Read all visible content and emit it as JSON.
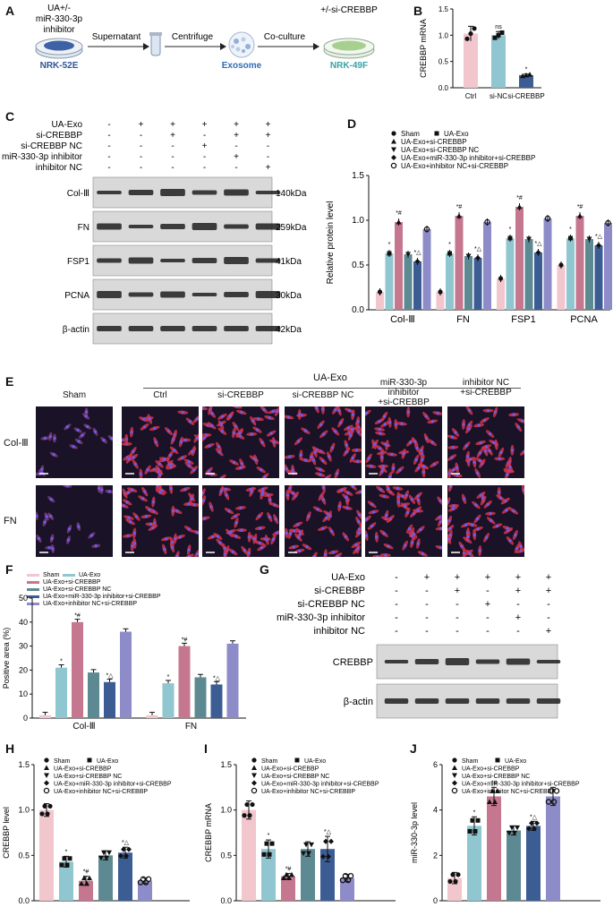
{
  "colors": {
    "sham": "#f2c6cd",
    "ua_exo": "#8fc6cf",
    "si_crebbp": "#c5778f",
    "si_crebbp_nc": "#5d8a92",
    "mir_inhibitor": "#3c5c94",
    "inhibitor_nc": "#8e8cc8",
    "blot_bg": "#d9d9d9",
    "band": "#1e1e1e"
  },
  "panels": {
    "A": {
      "label": "A",
      "left_top": "UA+/-",
      "left_mid": "miR-330-3p",
      "left_bot": "inhibitor",
      "cell1": "NRK-52E",
      "step1": "Supernatant",
      "step2": "Centrifuge",
      "step3": "Co-culture",
      "top_right": "+/-si-CREBBP",
      "cell2": "Exosome",
      "cell3": "NRK-49F"
    },
    "B": {
      "label": "B"
    },
    "C": {
      "label": "C"
    },
    "D": {
      "label": "D"
    },
    "E": {
      "label": "E"
    },
    "F": {
      "label": "F"
    },
    "G": {
      "label": "G"
    },
    "H": {
      "label": "H"
    },
    "I": {
      "label": "I"
    },
    "J": {
      "label": "J"
    }
  },
  "blot_C": {
    "conditions": [
      "UA-Exo",
      "si-CREBBP",
      "si-CREBBP NC",
      "miR-330-3p inhibitor",
      "inhibitor NC"
    ],
    "signs": [
      [
        "-",
        "+",
        "+",
        "+",
        "+",
        "+"
      ],
      [
        "-",
        "-",
        "+",
        "-",
        "+",
        "+"
      ],
      [
        "-",
        "-",
        "-",
        "+",
        "-",
        "-"
      ],
      [
        "-",
        "-",
        "-",
        "-",
        "+",
        "-"
      ],
      [
        "-",
        "-",
        "-",
        "-",
        "-",
        "+"
      ]
    ],
    "rows": [
      {
        "name": "Col-Ⅲ",
        "kda": "140kDa"
      },
      {
        "name": "FN",
        "kda": "259kDa"
      },
      {
        "name": "FSP1",
        "kda": "41kDa"
      },
      {
        "name": "PCNA",
        "kda": "30kDa"
      },
      {
        "name": "β-actin",
        "kda": "42kDa"
      }
    ]
  },
  "blot_G": {
    "conditions": [
      "UA-Exo",
      "si-CREBBP",
      "si-CREBBP NC",
      "miR-330-3p inhibitor",
      "inhibitor NC"
    ],
    "signs": [
      [
        "-",
        "+",
        "+",
        "+",
        "+",
        "+"
      ],
      [
        "-",
        "-",
        "+",
        "-",
        "+",
        "+"
      ],
      [
        "-",
        "-",
        "-",
        "+",
        "-",
        "-"
      ],
      [
        "-",
        "-",
        "-",
        "-",
        "+",
        "-"
      ],
      [
        "-",
        "-",
        "-",
        "-",
        "-",
        "+"
      ]
    ],
    "rows": [
      {
        "name": "CREBBP"
      },
      {
        "name": "β-actin"
      }
    ]
  },
  "micro_E": {
    "group_header": "UA-Exo",
    "columns": [
      "Sham",
      "Ctrl",
      "si-CREBBP",
      "si-CREBBP NC",
      "miR-330-3p inhibitor\n+si-CREBBP",
      "inhibitor NC\n+si-CREBBP"
    ],
    "rows": [
      "Col-Ⅲ",
      "FN"
    ]
  },
  "legend6": [
    "Sham",
    "UA-Exo",
    "UA-Exo+si-CREBBP",
    "UA-Exo+si-CREBBP NC",
    "UA-Exo+miR-330-3p inhibitor+si-CREBBP",
    "UA-Exo+inhibitor NC+si-CREBBP"
  ],
  "chart_data": [
    {
      "panel": "B",
      "type": "bar",
      "categories": [
        "Ctrl",
        "si-NC",
        "si-CREBBP"
      ],
      "values": [
        1.03,
        1.0,
        0.24
      ],
      "errors": [
        0.14,
        0.07,
        0.02
      ],
      "annotations": [
        "",
        "ns",
        "*"
      ],
      "ylabel": "CREBBP mRNA",
      "ylim": [
        0,
        1.5
      ],
      "yticks": [
        "0.0",
        "0.5",
        "1.0",
        "1.5"
      ]
    },
    {
      "panel": "D",
      "type": "bar",
      "categories": [
        "Col-Ⅲ",
        "FN",
        "FSP1",
        "PCNA"
      ],
      "series": [
        {
          "name": "Sham",
          "values": [
            0.2,
            0.2,
            0.35,
            0.5
          ]
        },
        {
          "name": "UA-Exo",
          "values": [
            0.63,
            0.63,
            0.8,
            0.8
          ]
        },
        {
          "name": "UA-Exo+si-CREBBP",
          "values": [
            0.98,
            1.05,
            1.15,
            1.05
          ]
        },
        {
          "name": "UA-Exo+si-CREBBP NC",
          "values": [
            0.62,
            0.6,
            0.79,
            0.79
          ]
        },
        {
          "name": "UA-Exo+miR-330-3p inhibitor+si-CREBBP",
          "values": [
            0.54,
            0.58,
            0.64,
            0.72
          ]
        },
        {
          "name": "UA-Exo+inhibitor NC+si-CREBBP",
          "values": [
            0.9,
            0.98,
            1.02,
            0.97
          ]
        }
      ],
      "annotations": [
        [
          "",
          "*",
          "*#",
          "",
          "*△",
          ""
        ],
        [
          "",
          "*",
          "*#",
          "",
          "*△",
          ""
        ],
        [
          "",
          "*",
          "*#",
          "",
          "*△",
          ""
        ],
        [
          "",
          "*",
          "*#",
          "",
          "*△",
          ""
        ]
      ],
      "ylabel": "Relative protein level",
      "ylim": [
        0,
        1.5
      ],
      "yticks": [
        "0.0",
        "0.5",
        "1.0",
        "1.5"
      ]
    },
    {
      "panel": "F",
      "type": "bar",
      "categories": [
        "Col-Ⅲ",
        "FN"
      ],
      "series": [
        {
          "name": "Sham",
          "values": [
            1.2,
            1.2
          ]
        },
        {
          "name": "UA-Exo",
          "values": [
            21,
            14.5
          ]
        },
        {
          "name": "UA-Exo+si-CREBBP",
          "values": [
            40,
            30
          ]
        },
        {
          "name": "UA-Exo+si-CREBBP NC",
          "values": [
            19,
            17
          ]
        },
        {
          "name": "UA-Exo+miR-330-3p inhibitor+si-CREBBP",
          "values": [
            15,
            14
          ]
        },
        {
          "name": "UA-Exo+inhibitor NC+si-CREBBP",
          "values": [
            36,
            31
          ]
        }
      ],
      "annotations": [
        [
          "",
          "*",
          "*#",
          "",
          "*△",
          ""
        ],
        [
          "",
          "*",
          "*#",
          "",
          "*△",
          ""
        ]
      ],
      "ylabel": "Positive area (%)",
      "ylim": [
        0,
        50
      ],
      "yticks": [
        "0",
        "10",
        "20",
        "30",
        "40",
        "50"
      ]
    },
    {
      "panel": "H",
      "type": "bar",
      "categories": [
        "Sham",
        "UA-Exo",
        "UA-Exo+si-CREBBP",
        "UA-Exo+si-CREBBP NC",
        "UA-Exo+miR-330-3p inhibitor+si-CREBBP",
        "UA-Exo+inhibitor NC+si-CREBBP"
      ],
      "values": [
        1.0,
        0.43,
        0.22,
        0.5,
        0.53,
        0.22
      ],
      "errors": [
        0.07,
        0.06,
        0.05,
        0.05,
        0.06,
        0.03
      ],
      "annotations": [
        "",
        "*",
        "*#",
        "",
        "*△",
        ""
      ],
      "ylabel": "CREBBP level",
      "ylim": [
        0,
        1.5
      ],
      "yticks": [
        "0.0",
        "0.5",
        "1.0",
        "1.5"
      ]
    },
    {
      "panel": "I",
      "type": "bar",
      "categories": [
        "Sham",
        "UA-Exo",
        "UA-Exo+si-CREBBP",
        "UA-Exo+si-CREBBP NC",
        "UA-Exo+miR-330-3p inhibitor+si-CREBBP",
        "UA-Exo+inhibitor NC+si-CREBBP"
      ],
      "values": [
        1.0,
        0.57,
        0.27,
        0.57,
        0.57,
        0.25
      ],
      "errors": [
        0.1,
        0.1,
        0.03,
        0.08,
        0.14,
        0.04
      ],
      "annotations": [
        "",
        "*",
        "*#",
        "",
        "*△",
        ""
      ],
      "ylabel": "CREBBP mRNA",
      "ylim": [
        0,
        1.5
      ],
      "yticks": [
        "0.0",
        "0.5",
        "1.0",
        "1.5"
      ]
    },
    {
      "panel": "J",
      "type": "bar",
      "categories": [
        "Sham",
        "UA-Exo",
        "UA-Exo+si-CREBBP",
        "UA-Exo+si-CREBBP NC",
        "UA-Exo+miR-330-3p inhibitor+si-CREBBP",
        "UA-Exo+inhibitor NC+si-CREBBP"
      ],
      "values": [
        1.0,
        3.3,
        4.6,
        3.1,
        3.3,
        4.6
      ],
      "errors": [
        0.25,
        0.4,
        0.4,
        0.2,
        0.2,
        0.4
      ],
      "annotations": [
        "",
        "*",
        "*#",
        "",
        "*△",
        ""
      ],
      "ylabel": "miR-330-3p level",
      "ylim": [
        0,
        6
      ],
      "yticks": [
        "0",
        "2",
        "4",
        "6"
      ]
    }
  ]
}
